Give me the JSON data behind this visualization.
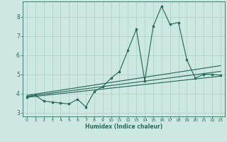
{
  "xlabel": "Humidex (Indice chaleur)",
  "xlim": [
    -0.5,
    23.5
  ],
  "ylim": [
    2.8,
    8.8
  ],
  "yticks": [
    3,
    4,
    5,
    6,
    7,
    8
  ],
  "xticks": [
    0,
    1,
    2,
    3,
    4,
    5,
    6,
    7,
    8,
    9,
    10,
    11,
    12,
    13,
    14,
    15,
    16,
    17,
    18,
    19,
    20,
    21,
    22,
    23
  ],
  "background_color": "#cce8e0",
  "line_color": "#2a6b5e",
  "grid_color": "#aacfc5",
  "data_x": [
    0,
    1,
    2,
    3,
    4,
    5,
    6,
    7,
    8,
    9,
    10,
    11,
    12,
    13,
    14,
    15,
    16,
    17,
    18,
    19,
    20,
    21,
    22,
    23
  ],
  "data_y": [
    3.8,
    3.9,
    3.6,
    3.55,
    3.5,
    3.45,
    3.7,
    3.3,
    4.1,
    4.35,
    4.8,
    5.15,
    6.25,
    7.35,
    4.65,
    7.5,
    8.55,
    7.6,
    7.7,
    5.75,
    4.8,
    5.0,
    5.0,
    4.95
  ],
  "trend1_x0": 0,
  "trend1_x1": 23,
  "trend1_y0": 3.8,
  "trend1_y1": 4.9,
  "trend2_x0": 0,
  "trend2_x1": 23,
  "trend2_y0": 3.85,
  "trend2_y1": 5.15,
  "trend3_x0": 0,
  "trend3_x1": 23,
  "trend3_y0": 3.9,
  "trend3_y1": 5.45
}
